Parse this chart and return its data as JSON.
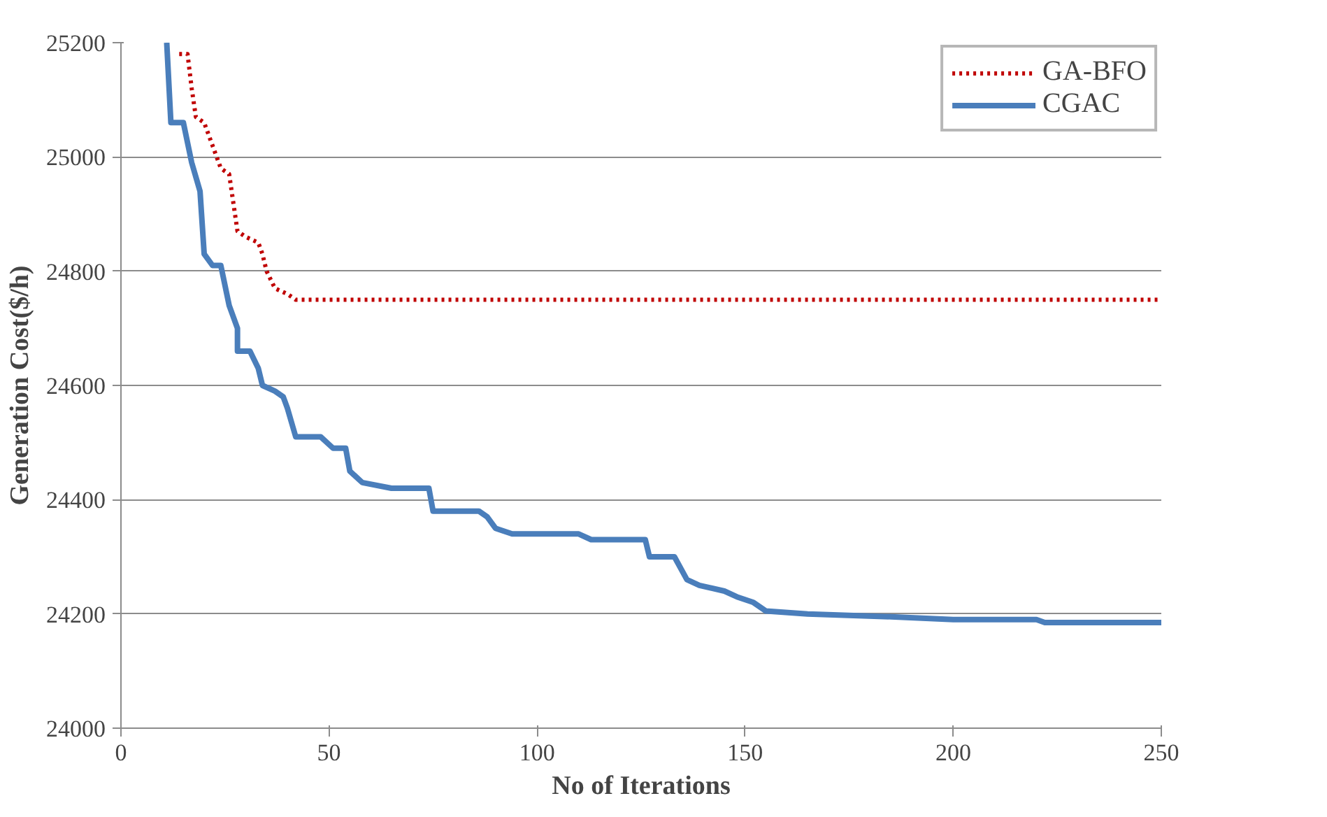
{
  "chart_data": {
    "type": "line",
    "xlabel": "No of Iterations",
    "ylabel": "Generation Cost($/h)",
    "xlim": [
      0,
      250
    ],
    "xticks": [
      0,
      50,
      100,
      150,
      200,
      250
    ],
    "ylim": [
      24000,
      25200
    ],
    "yticks": [
      24000,
      24200,
      24400,
      24600,
      24800,
      25000,
      25200
    ],
    "grid": "y",
    "legend": "top right",
    "series": [
      {
        "name": "GA-BFO",
        "color": "#c00000",
        "line_style": "dotted",
        "x": [
          14,
          16,
          17,
          18,
          20,
          22,
          23,
          24,
          26,
          27,
          28,
          30,
          33,
          34,
          35,
          37,
          40,
          42,
          250
        ],
        "values": [
          25180,
          25180,
          25120,
          25070,
          25060,
          25020,
          25000,
          24980,
          24970,
          24920,
          24870,
          24860,
          24850,
          24830,
          24800,
          24770,
          24760,
          24750,
          24750
        ]
      },
      {
        "name": "CGAC",
        "color": "#4a7ebb",
        "line_style": "solid",
        "x": [
          11,
          12,
          15,
          17,
          19,
          20,
          22,
          24,
          26,
          28,
          28,
          31,
          33,
          34,
          37,
          39,
          40,
          42,
          48,
          51,
          54,
          55,
          58,
          65,
          74,
          75,
          86,
          88,
          90,
          94,
          110,
          113,
          126,
          127,
          133,
          136,
          139,
          145,
          148,
          152,
          155,
          165,
          185,
          200,
          220,
          222,
          250
        ],
        "values": [
          25200,
          25060,
          25060,
          24990,
          24940,
          24830,
          24810,
          24810,
          24740,
          24700,
          24660,
          24660,
          24630,
          24600,
          24590,
          24580,
          24560,
          24510,
          24510,
          24490,
          24490,
          24450,
          24430,
          24420,
          24420,
          24380,
          24380,
          24370,
          24350,
          24340,
          24340,
          24330,
          24330,
          24300,
          24300,
          24260,
          24250,
          24240,
          24230,
          24220,
          24205,
          24200,
          24195,
          24190,
          24190,
          24185,
          24185
        ]
      }
    ]
  }
}
